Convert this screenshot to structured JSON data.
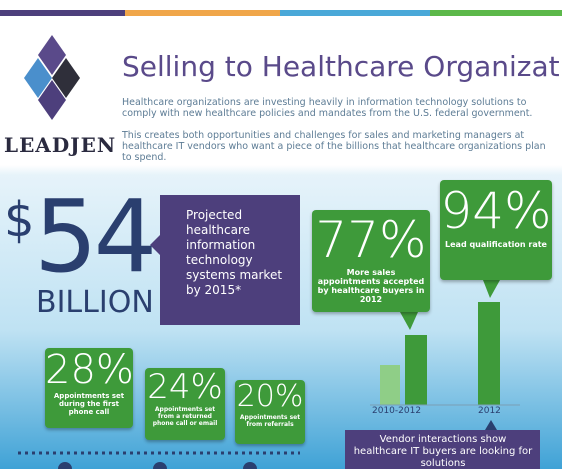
{
  "header": {
    "brand": "LEADJEN",
    "title": "Selling to Healthcare Organizations",
    "paragraphs": [
      "Healthcare organizations are investing heavily in information technology solutions to comply with new healthcare policies and mandates from the U.S. federal government.",
      "This creates both opportunities and challenges for sales and marketing managers at healthcare IT vendors who want a piece of the billions that healthcare organizations plan to spend."
    ]
  },
  "market": {
    "currency": "$",
    "amount": "54",
    "unit": "BILLION",
    "description": "Projected healthcare information technology systems market by 2015*"
  },
  "stats": [
    {
      "value": "77%",
      "label": "More sales appointments accepted by healthcare buyers in 2012"
    },
    {
      "value": "94%",
      "label": "Lead qualification rate"
    }
  ],
  "bar_labels": [
    "2010-2012",
    "2012"
  ],
  "appointments": [
    {
      "value": "28%",
      "label": "Appointments set during the first phone call"
    },
    {
      "value": "24%",
      "label": "Appointments set from a returned phone call or email"
    },
    {
      "value": "20%",
      "label": "Appointments set from referrals"
    }
  ],
  "footer_note": "Vendor interactions show healthcare IT buyers are looking for solutions"
}
